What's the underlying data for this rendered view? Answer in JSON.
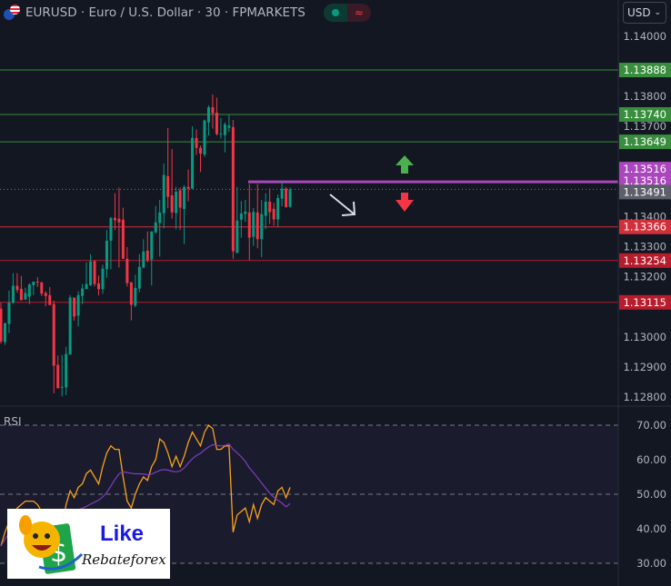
{
  "header": {
    "symbol": "EURUSD",
    "title": "EURUSD · Euro / U.S. Dollar · 30 · FPMARKETS",
    "market_status": "open",
    "wave_icon": "≈"
  },
  "currency_select": {
    "value": "USD"
  },
  "price_axis": {
    "ticks": [
      "1.14000",
      "1.13800",
      "1.13700",
      "1.13400",
      "1.13300",
      "1.13200",
      "1.13000",
      "1.12900",
      "1.12800"
    ],
    "tick_values": [
      1.14,
      1.138,
      1.137,
      1.134,
      1.133,
      1.132,
      1.13,
      1.129,
      1.128
    ]
  },
  "levels": [
    {
      "price": 1.13888,
      "label": "1.13888",
      "color": "#388e3c"
    },
    {
      "price": 1.1374,
      "label": "1.13740",
      "color": "#388e3c"
    },
    {
      "price": 1.13649,
      "label": "1.13649",
      "color": "#388e3c"
    },
    {
      "price": 1.13366,
      "label": "1.13366",
      "color": "#d32f3a"
    },
    {
      "price": 1.13254,
      "label": "1.13254",
      "color": "#b71c2c"
    },
    {
      "price": 1.13115,
      "label": "1.13115",
      "color": "#b71c2c"
    }
  ],
  "purple_level": {
    "price": 1.13516,
    "labels": [
      "1.13516",
      "1.13516"
    ],
    "color": "#ab47bc"
  },
  "last_price": {
    "price": 1.13491,
    "label": "1.13491"
  },
  "colors": {
    "background": "#131722",
    "up": "#089981",
    "down": "#f23645",
    "rsi": "#f7a21b",
    "rsi_ma": "#7e3fb8",
    "arrow_up": "#4caf50",
    "arrow_down": "#f23645"
  },
  "candles": [
    [
      1.13094,
      1.13114,
      1.12978,
      1.12985
    ],
    [
      1.12983,
      1.13048,
      1.12973,
      1.13045
    ],
    [
      1.13043,
      1.13154,
      1.13013,
      1.13114
    ],
    [
      1.13114,
      1.13212,
      1.13109,
      1.1317
    ],
    [
      1.1317,
      1.13212,
      1.13147,
      1.13156
    ],
    [
      1.1316,
      1.13203,
      1.13122,
      1.13122
    ],
    [
      1.13124,
      1.13164,
      1.13124,
      1.13146
    ],
    [
      1.13134,
      1.13179,
      1.13109,
      1.13174
    ],
    [
      1.13172,
      1.13184,
      1.13139,
      1.13184
    ],
    [
      1.13184,
      1.13199,
      1.13166,
      1.13181
    ],
    [
      1.13181,
      1.13184,
      1.13136,
      1.13144
    ],
    [
      1.13146,
      1.13152,
      1.13102,
      1.13136
    ],
    [
      1.13139,
      1.13166,
      1.13106,
      1.13106
    ],
    [
      1.13109,
      1.13121,
      1.12812,
      1.12904
    ],
    [
      1.12907,
      1.12938,
      1.12829,
      1.12829
    ],
    [
      1.12832,
      1.1294,
      1.12802,
      1.12834
    ],
    [
      1.12832,
      1.12967,
      1.12806,
      1.12943
    ],
    [
      1.12941,
      1.13139,
      1.12941,
      1.13131
    ],
    [
      1.13131,
      1.13131,
      1.13054,
      1.13068
    ],
    [
      1.13071,
      1.13152,
      1.13035,
      1.13139
    ],
    [
      1.13136,
      1.13176,
      1.13109,
      1.13161
    ],
    [
      1.13159,
      1.13248,
      1.13159,
      1.13176
    ],
    [
      1.13172,
      1.13275,
      1.13169,
      1.13251
    ],
    [
      1.13252,
      1.13255,
      1.13168,
      1.13176
    ],
    [
      1.13178,
      1.13204,
      1.13138,
      1.13159
    ],
    [
      1.13159,
      1.1324,
      1.13144,
      1.13227
    ],
    [
      1.13225,
      1.13355,
      1.13197,
      1.1332
    ],
    [
      1.1332,
      1.13399,
      1.13225,
      1.13396
    ],
    [
      1.13396,
      1.13478,
      1.13356,
      1.13388
    ],
    [
      1.13393,
      1.13497,
      1.13231,
      1.13381
    ],
    [
      1.1339,
      1.1343,
      1.1326,
      1.1326
    ],
    [
      1.1326,
      1.13299,
      1.13168,
      1.13179
    ],
    [
      1.13182,
      1.13182,
      1.13055,
      1.13107
    ],
    [
      1.13104,
      1.13207,
      1.13099,
      1.13163
    ],
    [
      1.13161,
      1.13275,
      1.13149,
      1.13233
    ],
    [
      1.13231,
      1.13325,
      1.13228,
      1.13284
    ],
    [
      1.13287,
      1.13351,
      1.13248,
      1.13255
    ],
    [
      1.13257,
      1.13351,
      1.13171,
      1.13351
    ],
    [
      1.13348,
      1.13436,
      1.13343,
      1.13381
    ],
    [
      1.13379,
      1.13456,
      1.13267,
      1.13414
    ],
    [
      1.13412,
      1.13577,
      1.13361,
      1.13539
    ],
    [
      1.13535,
      1.13695,
      1.13428,
      1.13466
    ],
    [
      1.13471,
      1.13625,
      1.13394,
      1.13414
    ],
    [
      1.13412,
      1.13499,
      1.13358,
      1.13483
    ],
    [
      1.13488,
      1.13497,
      1.13356,
      1.1343
    ],
    [
      1.13426,
      1.13505,
      1.13309,
      1.13499
    ],
    [
      1.13499,
      1.13557,
      1.13451,
      1.13493
    ],
    [
      1.13493,
      1.13701,
      1.13493,
      1.13662
    ],
    [
      1.13662,
      1.1369,
      1.13605,
      1.13629
    ],
    [
      1.13629,
      1.13637,
      1.13549,
      1.1361
    ],
    [
      1.13607,
      1.13723,
      1.13599,
      1.1372
    ],
    [
      1.13714,
      1.1377,
      1.1367,
      1.13764
    ],
    [
      1.13764,
      1.13807,
      1.13693,
      1.13744
    ],
    [
      1.13746,
      1.13796,
      1.1367,
      1.13675
    ],
    [
      1.13675,
      1.13728,
      1.1366,
      1.13676
    ],
    [
      1.13671,
      1.13714,
      1.13614,
      1.13707
    ],
    [
      1.13696,
      1.13738,
      1.13682,
      1.13703
    ],
    [
      1.13698,
      1.13722,
      1.1326,
      1.13285
    ],
    [
      1.13279,
      1.13499,
      1.13279,
      1.13387
    ],
    [
      1.1339,
      1.13452,
      1.1333,
      1.13411
    ],
    [
      1.13409,
      1.13456,
      1.13383,
      1.13417
    ],
    [
      1.13414,
      1.13509,
      1.13255,
      1.1333
    ],
    [
      1.13333,
      1.13429,
      1.13303,
      1.13416
    ],
    [
      1.13414,
      1.13509,
      1.13295,
      1.13325
    ],
    [
      1.13325,
      1.13456,
      1.13265,
      1.13408
    ],
    [
      1.13403,
      1.13478,
      1.13359,
      1.1345
    ],
    [
      1.1345,
      1.13494,
      1.13376,
      1.13415
    ],
    [
      1.13426,
      1.13446,
      1.1337,
      1.13391
    ],
    [
      1.13391,
      1.13474,
      1.13366,
      1.13462
    ],
    [
      1.1346,
      1.13515,
      1.13434,
      1.13493
    ],
    [
      1.13493,
      1.13499,
      1.1343,
      1.13432
    ],
    [
      1.13433,
      1.13497,
      1.1343,
      1.1349
    ]
  ],
  "rsi": {
    "label": "RSI",
    "ticks": [
      "70.00",
      "60.00",
      "50.00",
      "40.00",
      "30.00"
    ],
    "tick_values": [
      70,
      60,
      50,
      40,
      30
    ],
    "values": [
      35,
      39,
      42,
      44,
      46,
      47,
      48,
      48,
      48,
      47,
      45,
      45,
      44,
      38,
      36,
      40,
      47,
      51,
      49,
      52,
      53,
      56,
      57,
      55,
      53,
      58,
      62,
      64,
      63,
      63,
      55,
      48,
      46,
      50,
      53,
      55,
      54,
      58,
      60,
      66,
      65,
      62,
      58,
      61,
      58,
      61,
      65,
      68,
      66,
      64,
      68,
      70,
      69,
      63,
      63,
      64,
      64,
      39,
      44,
      45,
      46,
      42,
      47,
      43,
      47,
      49,
      48,
      47,
      51,
      52,
      49,
      52
    ]
  },
  "watermark": {
    "line1": "Like",
    "line2": "Rebateforex"
  }
}
